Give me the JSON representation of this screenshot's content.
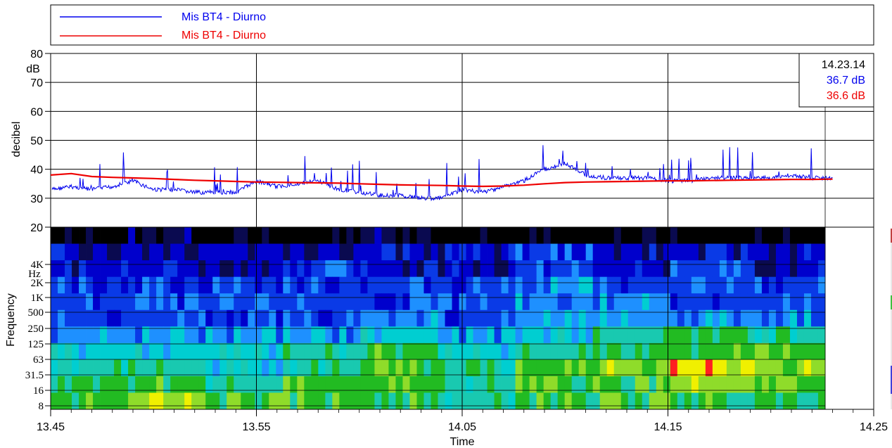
{
  "chart_data": [
    {
      "type": "line",
      "xlabel": "Time",
      "ylabel": "decibel",
      "unit_label": "dB",
      "ylim": [
        20,
        80
      ],
      "yticks": [
        20,
        30,
        40,
        50,
        60,
        70,
        80
      ],
      "xticks": [
        "13.45",
        "13.55",
        "14.05",
        "14.15",
        "14.25"
      ],
      "grid": true,
      "legend_position": "top",
      "series": [
        {
          "name": "Mis BT4 - Diurno",
          "color": "#0000ee",
          "x": [
            "13.45",
            "13.46",
            "13.47",
            "13.48",
            "13.49",
            "13.50",
            "13.51",
            "13.52",
            "13.53",
            "13.54",
            "13.55",
            "13.56",
            "13.57",
            "13.58",
            "13.59",
            "14.00",
            "14.01",
            "14.02",
            "14.03",
            "14.04",
            "14.05",
            "14.06",
            "14.07",
            "14.08",
            "14.09",
            "14.10",
            "14.11",
            "14.12",
            "14.13",
            "14.14",
            "14.15",
            "14.16",
            "14.17",
            "14.18",
            "14.19",
            "14.20",
            "14.21",
            "14.22",
            "14.23"
          ],
          "values": [
            33,
            34,
            33,
            34,
            36,
            33,
            33,
            32,
            32,
            32,
            36,
            34,
            35,
            36,
            33,
            32,
            31,
            31,
            30,
            30,
            33,
            32,
            34,
            36,
            40,
            42,
            38,
            37,
            37,
            37,
            36,
            36,
            37,
            37,
            37,
            37,
            38,
            37,
            37
          ]
        },
        {
          "name": "Mis BT4 - Diurno",
          "color": "#ee0000",
          "x": [
            "13.45",
            "13.46",
            "13.47",
            "13.48",
            "13.49",
            "13.50",
            "13.51",
            "13.52",
            "13.53",
            "13.54",
            "13.55",
            "13.56",
            "13.57",
            "13.58",
            "13.59",
            "14.00",
            "14.01",
            "14.02",
            "14.03",
            "14.04",
            "14.05",
            "14.06",
            "14.07",
            "14.08",
            "14.09",
            "14.10",
            "14.11",
            "14.12",
            "14.13",
            "14.14",
            "14.15",
            "14.16",
            "14.17",
            "14.18",
            "14.19",
            "14.20",
            "14.21",
            "14.22",
            "14.23"
          ],
          "values": [
            38,
            38.5,
            37.5,
            37.2,
            37,
            36.8,
            36.5,
            36.2,
            36,
            35.8,
            35.6,
            35.5,
            35.4,
            35.3,
            35.2,
            35.0,
            34.8,
            34.6,
            34.5,
            34.4,
            34.2,
            34.1,
            34.2,
            34.5,
            35.0,
            35.4,
            35.6,
            35.7,
            35.8,
            35.9,
            36.0,
            36.0,
            36.1,
            36.2,
            36.3,
            36.4,
            36.5,
            36.5,
            36.6
          ]
        }
      ],
      "cursor": {
        "time": "14.23.14",
        "blue_value": "36.7 dB",
        "red_value": "36.6 dB"
      }
    },
    {
      "type": "heatmap",
      "xlabel": "Time",
      "ylabel": "Frequency",
      "unit_label": "Hz",
      "yticks": [
        "4K",
        "2K",
        "1K",
        "500",
        "250",
        "125",
        "63",
        "31.5",
        "16",
        "8"
      ],
      "palette": [
        "#000000",
        "#0a0a50",
        "#0000cc",
        "#0a3ae6",
        "#1e90ff",
        "#00ced1",
        "#19c9b0",
        "#22bb22",
        "#8fdc2a",
        "#f0f000",
        "#ff2020"
      ],
      "level_by_band_and_segment": [
        [
          0,
          1,
          0,
          0,
          1,
          0,
          0,
          0,
          0,
          0
        ],
        [
          2,
          2,
          2,
          2,
          2,
          2,
          3,
          2,
          2,
          2
        ],
        [
          2,
          2,
          2,
          3,
          2,
          2,
          3,
          2,
          3,
          2
        ],
        [
          3,
          3,
          3,
          3,
          3,
          3,
          4,
          3,
          3,
          3
        ],
        [
          3,
          3,
          3,
          3,
          3,
          3,
          4,
          4,
          3,
          3
        ],
        [
          3,
          3,
          3,
          3,
          4,
          3,
          4,
          4,
          4,
          4
        ],
        [
          4,
          4,
          4,
          4,
          5,
          4,
          5,
          6,
          7,
          6
        ],
        [
          5,
          5,
          5,
          6,
          7,
          5,
          6,
          7,
          7,
          7
        ],
        [
          6,
          6,
          5,
          6,
          7,
          6,
          7,
          8,
          9,
          8
        ],
        [
          7,
          7,
          6,
          7,
          7,
          6,
          7,
          7,
          8,
          7
        ],
        [
          7,
          8,
          7,
          7,
          7,
          6,
          7,
          7,
          7,
          7
        ]
      ]
    }
  ]
}
